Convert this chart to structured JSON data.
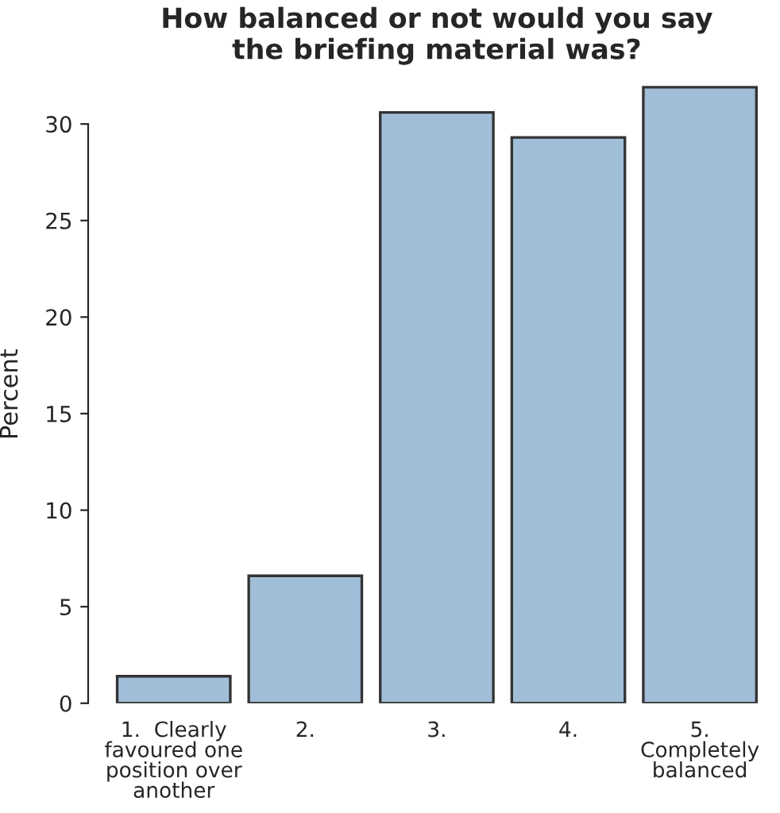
{
  "chart_data": {
    "type": "bar",
    "title": "How balanced or not would you say\nthe briefing material was?",
    "ylabel": "Percent",
    "categories": [
      "1.  Clearly\nfavoured one\nposition over\nanother",
      "2.",
      "3.",
      "4.",
      "5.\nCompletely\nbalanced"
    ],
    "values": [
      1.4,
      6.6,
      30.6,
      29.3,
      31.9
    ],
    "color": "#a1bed9",
    "ylim": [
      0,
      32
    ],
    "yticks": [
      0,
      5,
      10,
      15,
      20,
      25,
      30
    ],
    "grid": false
  }
}
